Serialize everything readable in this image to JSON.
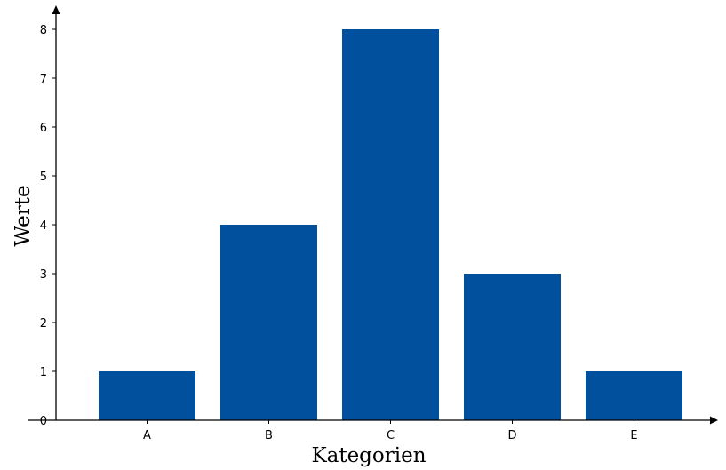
{
  "chart_data": {
    "type": "bar",
    "title": "",
    "categories": [
      "A",
      "B",
      "C",
      "D",
      "E"
    ],
    "values": [
      1,
      4,
      8,
      3,
      1
    ],
    "xlabel": "Kategorien",
    "ylabel": "Werte",
    "ylim": [
      0,
      8
    ],
    "yticks": [
      "0",
      "1",
      "2",
      "3",
      "4",
      "5",
      "6",
      "7",
      "8"
    ],
    "grid": false,
    "legend": "none",
    "colors": {
      "bar": "#00509E",
      "axis": "#000000"
    }
  }
}
